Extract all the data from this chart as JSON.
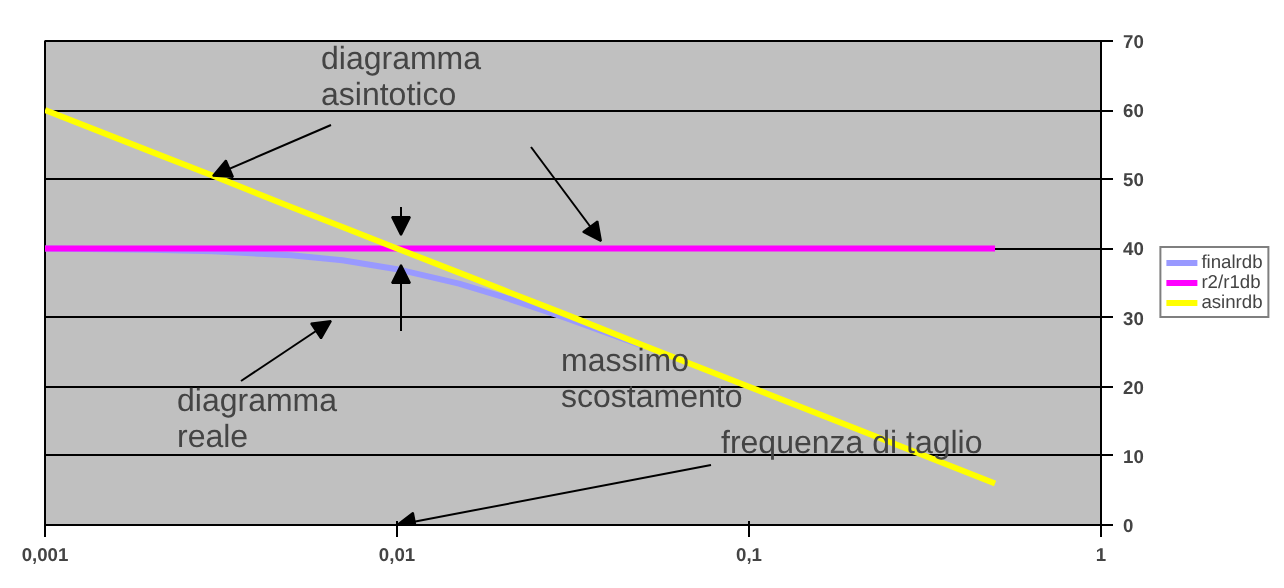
{
  "chart_data": {
    "type": "line",
    "x": [
      0.001,
      0.002,
      0.003,
      0.005,
      0.007,
      0.01,
      0.015,
      0.02,
      0.03,
      0.05,
      0.1,
      0.2,
      0.5
    ],
    "series": [
      {
        "name": "finalrdb",
        "color": "#9999ff",
        "values": [
          40,
          39.8,
          39.6,
          39,
          38.3,
          37,
          34.9,
          33,
          30,
          25.9,
          null,
          null,
          null
        ]
      },
      {
        "name": "r2/r1db",
        "color": "#ff00ff",
        "values": [
          40,
          40,
          40,
          40,
          40,
          40,
          40,
          40,
          40,
          40,
          40,
          40,
          40
        ]
      },
      {
        "name": "asinrdb",
        "color": "#ffff00",
        "values": [
          60,
          54,
          50.5,
          46,
          43.1,
          40,
          36.5,
          34,
          30.5,
          26,
          20,
          14,
          6
        ]
      }
    ],
    "log": "x",
    "xlim": [
      0.001,
      1
    ],
    "xticks": [
      {
        "value": 0.001,
        "label": "0,001"
      },
      {
        "value": 0.01,
        "label": "0,01"
      },
      {
        "value": 0.1,
        "label": "0,1"
      },
      {
        "value": 1,
        "label": "1"
      }
    ],
    "ylim": [
      0,
      70
    ],
    "yticks": [
      0,
      10,
      20,
      30,
      40,
      50,
      60,
      70
    ],
    "grid": "y",
    "legend": "right",
    "marker": "none",
    "line_style": "solid",
    "annotations": [
      {
        "text": "diagramma\nasintotico",
        "x": 0.003,
        "y": 50.5
      },
      "massimo\nscostamento",
      "diagramma\nreale",
      "frequenza di taglio"
    ]
  }
}
